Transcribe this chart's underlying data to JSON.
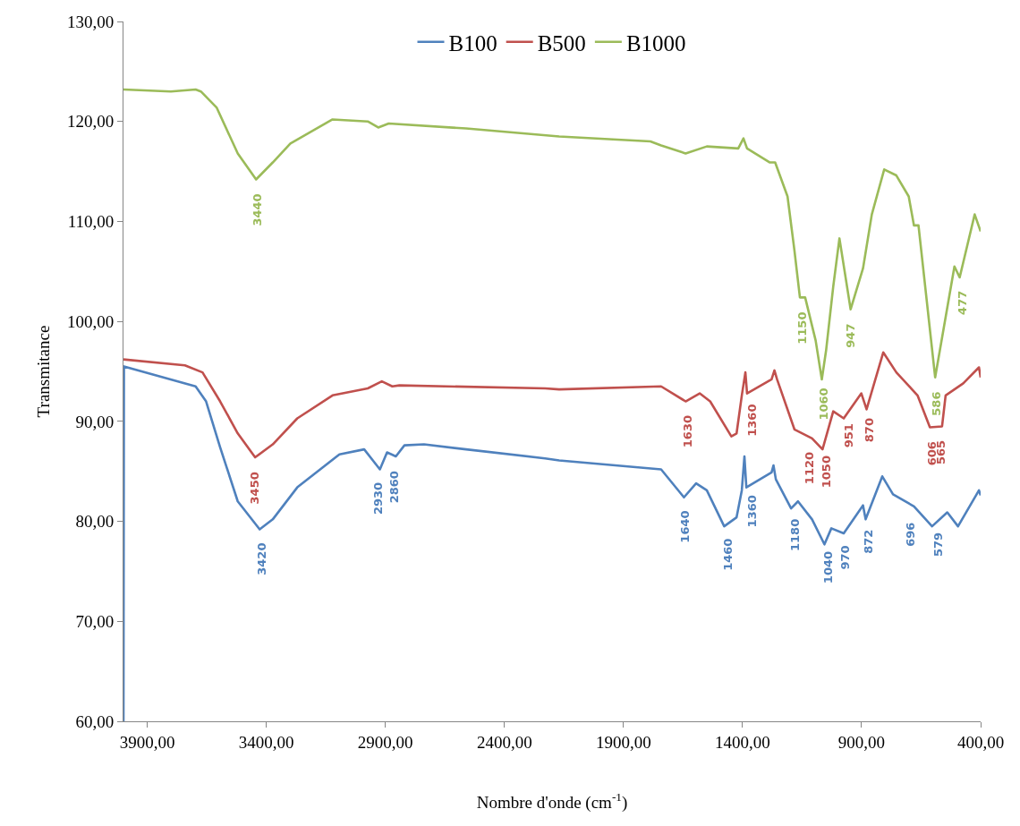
{
  "chart_data": {
    "type": "line",
    "xlabel": "Nombre d'onde (cm$^{-1}$)",
    "ylabel": "Transmitance",
    "xlim": [
      4000,
      400
    ],
    "ylim": [
      60,
      130
    ],
    "xticks": [
      {
        "value": 3900,
        "label": "3900,00"
      },
      {
        "value": 3400,
        "label": "3400,00"
      },
      {
        "value": 2900,
        "label": "2900,00"
      },
      {
        "value": 2400,
        "label": "2400,00"
      },
      {
        "value": 1900,
        "label": "1900,00"
      },
      {
        "value": 1400,
        "label": "1400,00"
      },
      {
        "value": 900,
        "label": "900,00"
      },
      {
        "value": 400,
        "label": "400,00"
      }
    ],
    "yticks": [
      {
        "value": 60,
        "label": "60,00"
      },
      {
        "value": 70,
        "label": "70,00"
      },
      {
        "value": 80,
        "label": "80,00"
      },
      {
        "value": 90,
        "label": "90,00"
      },
      {
        "value": 100,
        "label": "100,00"
      },
      {
        "value": 110,
        "label": "110,00"
      },
      {
        "value": 120,
        "label": "120,00"
      },
      {
        "value": 130,
        "label": "130,00"
      }
    ],
    "grid": false,
    "legend": "top",
    "line_style": "solid",
    "series": [
      {
        "name": "B100",
        "color": "#4f81bd",
        "x": [
          4000,
          3998,
          3697,
          3653,
          3594,
          3520,
          3428,
          3373,
          3270,
          3093,
          2989,
          2923,
          2893,
          2856,
          2820,
          2738,
          2561,
          2229,
          2170,
          1742,
          1646,
          1595,
          1550,
          1477,
          1425,
          1403,
          1392,
          1384,
          1278,
          1270,
          1260,
          1196,
          1167,
          1108,
          1056,
          1027,
          975,
          894,
          883,
          813,
          768,
          680,
          604,
          540,
          495,
          407,
          400
        ],
        "values": [
          60,
          95.5,
          93.5,
          92.0,
          87.4,
          82.0,
          79.2,
          80.2,
          83.4,
          86.7,
          87.2,
          85.2,
          86.9,
          86.5,
          87.6,
          87.7,
          87.2,
          86.3,
          86.1,
          85.2,
          82.4,
          83.8,
          83.1,
          79.5,
          80.4,
          83.1,
          86.5,
          83.4,
          84.9,
          85.6,
          84.2,
          81.3,
          82.0,
          80.2,
          77.7,
          79.3,
          78.8,
          81.6,
          80.2,
          84.5,
          82.7,
          81.5,
          79.5,
          80.9,
          79.5,
          83.1,
          82.6
        ]
      },
      {
        "name": "B500",
        "color": "#c0504d",
        "x": [
          4000,
          3742,
          3668,
          3594,
          3520,
          3447,
          3373,
          3270,
          3122,
          2974,
          2915,
          2871,
          2841,
          2229,
          2170,
          1742,
          1639,
          1580,
          1536,
          1447,
          1425,
          1403,
          1388,
          1381,
          1278,
          1266,
          1255,
          1182,
          1108,
          1064,
          1019,
          975,
          901,
          879,
          809,
          754,
          665,
          613,
          562,
          547,
          473,
          407,
          400
        ],
        "values": [
          96.2,
          95.6,
          94.9,
          92.0,
          88.8,
          86.4,
          87.7,
          90.3,
          92.6,
          93.3,
          94.0,
          93.5,
          93.6,
          93.3,
          93.2,
          93.5,
          92.0,
          92.8,
          92.0,
          88.5,
          88.8,
          92.6,
          94.9,
          92.8,
          94.2,
          95.1,
          94.2,
          89.2,
          88.3,
          87.2,
          91.0,
          90.3,
          92.8,
          91.2,
          96.9,
          94.9,
          92.6,
          89.4,
          89.5,
          92.6,
          93.8,
          95.4,
          94.4
        ]
      },
      {
        "name": "B1000",
        "color": "#9bbb59",
        "x": [
          4000,
          3801,
          3697,
          3675,
          3609,
          3520,
          3443,
          3373,
          3299,
          3122,
          2974,
          2930,
          2886,
          2561,
          2170,
          1787,
          1742,
          1639,
          1550,
          1418,
          1396,
          1381,
          1285,
          1263,
          1211,
          1182,
          1159,
          1137,
          1093,
          1067,
          1049,
          1019,
          993,
          946,
          894,
          857,
          805,
          754,
          702,
          680,
          661,
          591,
          510,
          488,
          425,
          400
        ],
        "values": [
          123.2,
          123.0,
          123.2,
          123.0,
          121.4,
          116.8,
          114.2,
          115.9,
          117.8,
          120.2,
          120.0,
          119.4,
          119.8,
          119.3,
          118.5,
          118.0,
          117.6,
          116.8,
          117.5,
          117.3,
          118.3,
          117.3,
          115.9,
          115.9,
          112.5,
          107.1,
          102.4,
          102.4,
          98.1,
          94.2,
          97.1,
          103.5,
          108.3,
          101.2,
          105.3,
          110.7,
          115.2,
          114.6,
          112.5,
          109.6,
          109.6,
          94.4,
          105.5,
          104.4,
          110.7,
          109.0
        ]
      }
    ],
    "annotations": [
      {
        "text": "3420",
        "x": 3420,
        "y": 79.3
      },
      {
        "text": "2930",
        "x": 2930,
        "y": 85.3
      },
      {
        "text": "2860",
        "x": 2860,
        "y": 86.5
      },
      {
        "text": "1640",
        "x": 1640,
        "y": 82.5
      },
      {
        "text": "1460",
        "x": 1460,
        "y": 79.7
      },
      {
        "text": "1360",
        "x": 1360,
        "y": 84.0
      },
      {
        "text": "1180",
        "x": 1180,
        "y": 81.7
      },
      {
        "text": "1040",
        "x": 1040,
        "y": 78.4
      },
      {
        "text": "970",
        "x": 970,
        "y": 79.0
      },
      {
        "text": "872",
        "x": 872,
        "y": 80.6
      },
      {
        "text": "696",
        "x": 696,
        "y": 81.3
      },
      {
        "text": "579",
        "x": 579,
        "y": 80.3
      },
      {
        "text": "3450",
        "x": 3450,
        "y": 86.4
      },
      {
        "text": "1630",
        "x": 1630,
        "y": 92.0
      },
      {
        "text": "1360",
        "x": 1360,
        "y": 93.1
      },
      {
        "text": "1120",
        "x": 1120,
        "y": 88.4
      },
      {
        "text": "1050",
        "x": 1050,
        "y": 88.0
      },
      {
        "text": "951",
        "x": 951,
        "y": 91.2
      },
      {
        "text": "870",
        "x": 870,
        "y": 91.8
      },
      {
        "text": "606",
        "x": 606,
        "y": 89.4
      },
      {
        "text": "565",
        "x": 565,
        "y": 89.5
      },
      {
        "text": "3440",
        "x": 3440,
        "y": 114.2
      },
      {
        "text": "1150",
        "x": 1150,
        "y": 102.4
      },
      {
        "text": "1060",
        "x": 1060,
        "y": 94.8
      },
      {
        "text": "947",
        "x": 947,
        "y": 101.2
      },
      {
        "text": "586",
        "x": 586,
        "y": 94.4
      },
      {
        "text": "477",
        "x": 477,
        "y": 104.5
      }
    ]
  }
}
